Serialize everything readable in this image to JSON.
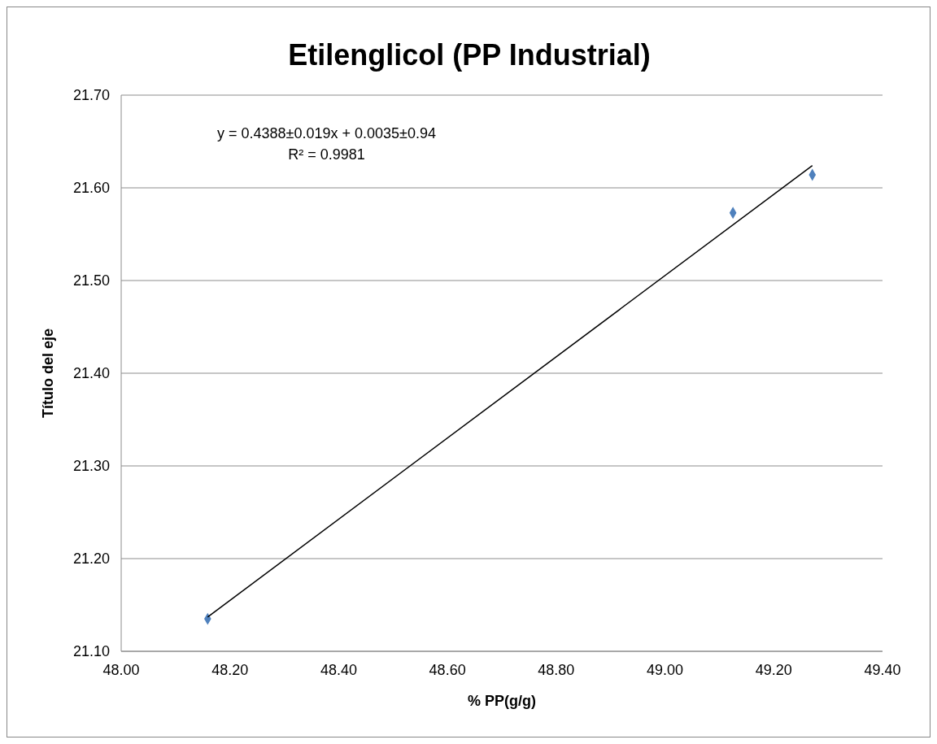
{
  "chart_data": {
    "type": "scatter",
    "title": "Etilenglicol (PP Industrial)",
    "xlabel": "% PP(g/g)",
    "ylabel": "Título del eje",
    "annotations": [
      "y = 0.4388±0.019x + 0.0035±0.94",
      "R² = 0.9981"
    ],
    "series": [
      {
        "color": "#4f81bd",
        "marker": "diamond",
        "x": [
          48.159,
          49.125,
          49.271
        ],
        "values": [
          21.135,
          21.573,
          21.614
        ]
      },
      {
        "type": "line",
        "color": "#000000",
        "marker": "none",
        "x": [
          48.159,
          49.271
        ],
        "values": [
          21.137,
          21.624
        ]
      }
    ],
    "xlim": [
      48,
      49.4
    ],
    "xticks": [
      {
        "value": 48,
        "label": "48.00"
      },
      {
        "value": 48.2,
        "label": "48.20"
      },
      {
        "value": 48.4,
        "label": "48.40"
      },
      {
        "value": 48.6,
        "label": "48.60"
      },
      {
        "value": 48.8,
        "label": "48.80"
      },
      {
        "value": 49,
        "label": "49.00"
      },
      {
        "value": 49.2,
        "label": "49.20"
      },
      {
        "value": 49.4,
        "label": "49.40"
      }
    ],
    "ylim": [
      21.1,
      21.7
    ],
    "yticks": [
      {
        "value": 21.1,
        "label": "21.10"
      },
      {
        "value": 21.2,
        "label": "21.20"
      },
      {
        "value": 21.3,
        "label": "21.30"
      },
      {
        "value": 21.4,
        "label": "21.40"
      },
      {
        "value": 21.5,
        "label": "21.50"
      },
      {
        "value": 21.6,
        "label": "21.60"
      },
      {
        "value": 21.7,
        "label": "21.70"
      }
    ],
    "grid": "y",
    "legend": false
  }
}
